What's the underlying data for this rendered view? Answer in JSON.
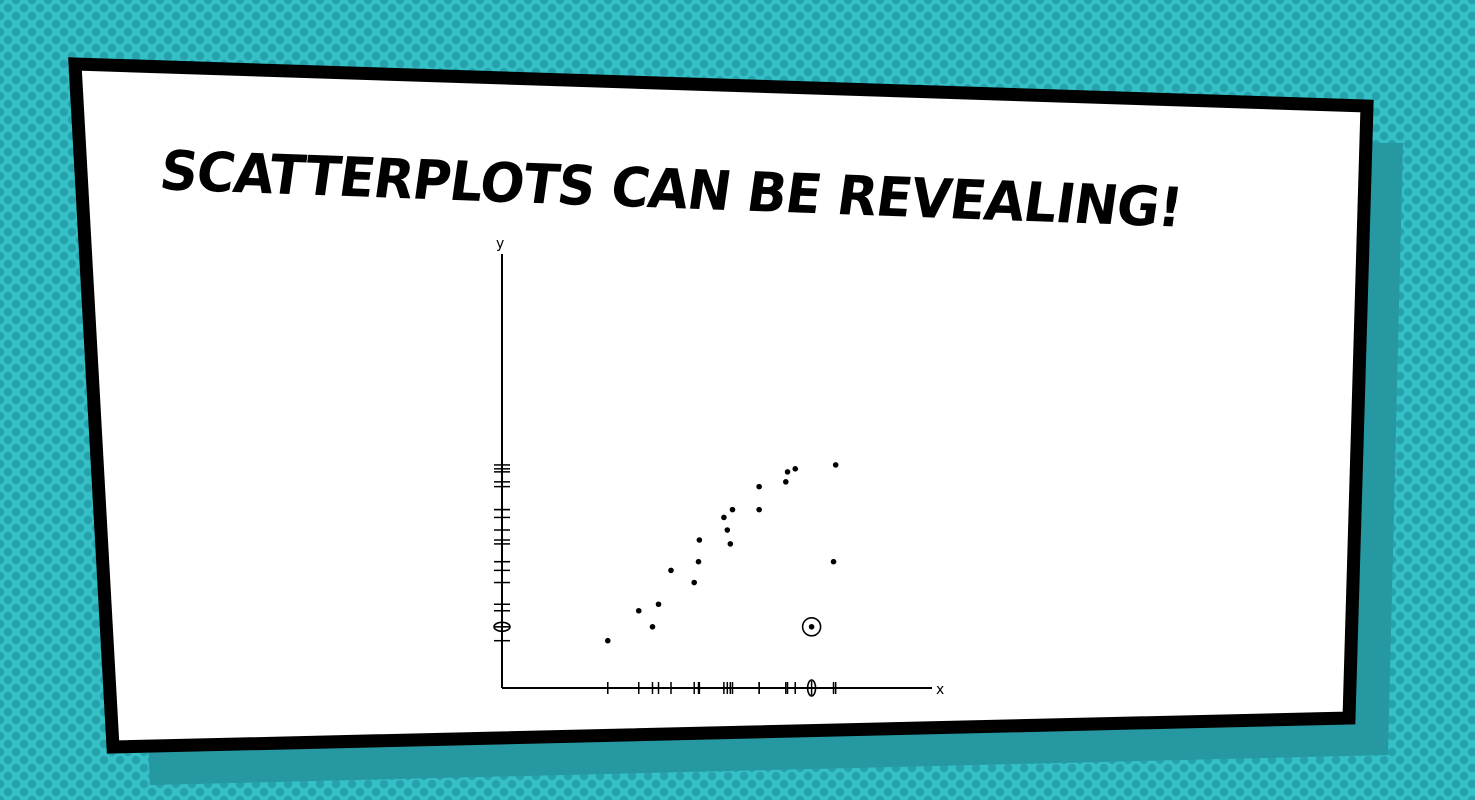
{
  "slide": {
    "title": "SCATTERPLOTS CAN BE REVEALING!",
    "colors": {
      "background": "#35c0c8",
      "dots": "#27a2ab",
      "shadow": "#2698a2",
      "panel": "#ffffff",
      "border": "#000000"
    }
  },
  "chart_data": {
    "type": "scatter",
    "title": "",
    "xlabel": "x",
    "ylabel": "y",
    "axis_ticks": "none",
    "rug_plots": true,
    "grid": false,
    "legend": "none",
    "xlim": [
      0,
      100
    ],
    "ylim": [
      0,
      100
    ],
    "points": [
      {
        "x": 24.6,
        "y": 10.9
      },
      {
        "x": 31.8,
        "y": 17.8
      },
      {
        "x": 35.0,
        "y": 14.1
      },
      {
        "x": 36.4,
        "y": 19.3
      },
      {
        "x": 39.3,
        "y": 27.1
      },
      {
        "x": 44.7,
        "y": 24.3
      },
      {
        "x": 45.7,
        "y": 29.1
      },
      {
        "x": 45.9,
        "y": 34.1
      },
      {
        "x": 51.6,
        "y": 39.3
      },
      {
        "x": 52.4,
        "y": 36.4
      },
      {
        "x": 53.1,
        "y": 33.2
      },
      {
        "x": 53.6,
        "y": 41.1
      },
      {
        "x": 59.8,
        "y": 41.1
      },
      {
        "x": 59.8,
        "y": 46.4
      },
      {
        "x": 66.0,
        "y": 47.5
      },
      {
        "x": 66.4,
        "y": 49.8
      },
      {
        "x": 68.2,
        "y": 50.5
      },
      {
        "x": 77.1,
        "y": 29.1
      },
      {
        "x": 77.6,
        "y": 51.4
      },
      {
        "x": 72.0,
        "y": 14.1,
        "highlighted": true
      }
    ]
  }
}
